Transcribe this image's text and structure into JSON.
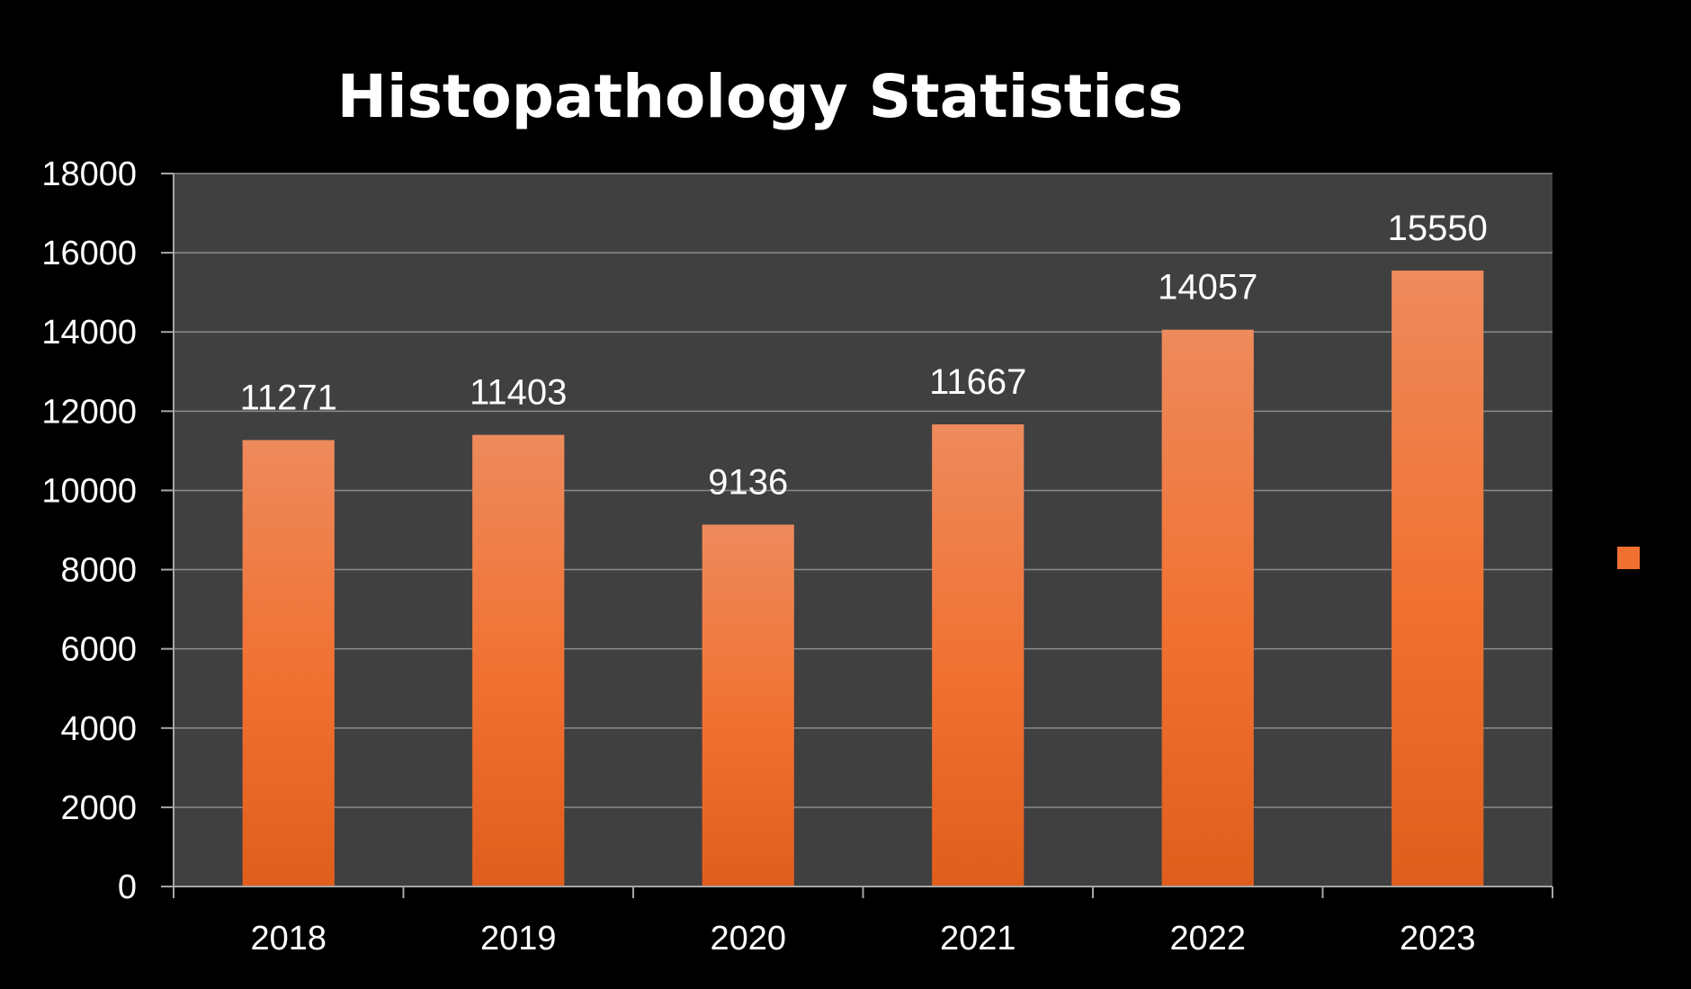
{
  "colors": {
    "background": "#000000",
    "plot_area": "#404040",
    "gridline": "#8c8c8c",
    "axis": "#a6a6a6",
    "bar_top": "#ee8a5c",
    "bar_mid": "#f07030",
    "bar_bottom": "#e05e1c",
    "text": "#ffffff"
  },
  "chart_data": {
    "type": "bar",
    "title": "Histopathology Statistics",
    "xlabel": "",
    "ylabel": "",
    "categories": [
      "2018",
      "2019",
      "2020",
      "2021",
      "2022",
      "2023"
    ],
    "series": [
      {
        "name": "",
        "values": [
          11271,
          11403,
          9136,
          11667,
          14057,
          15550
        ]
      }
    ],
    "data_labels": [
      "11271",
      "11403",
      "9136",
      "11667",
      "14057",
      "15550"
    ],
    "ylim": [
      0,
      18000
    ],
    "y_ticks": [
      0,
      2000,
      4000,
      6000,
      8000,
      10000,
      12000,
      14000,
      16000,
      18000
    ],
    "y_tick_labels": [
      "0",
      "2000",
      "4000",
      "6000",
      "8000",
      "10000",
      "12000",
      "14000",
      "16000",
      "18000"
    ],
    "grid": true,
    "legend": {
      "position": "right",
      "entries": [
        ""
      ]
    }
  }
}
